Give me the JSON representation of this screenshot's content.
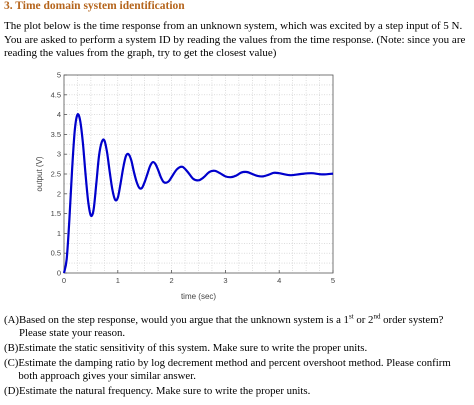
{
  "heading": "3.   Time domain system identification",
  "intro": "The plot below is the time response from an unknown system, which was excited by a step input of 5 N. You are asked to perform a system ID by reading the values from the time response. (Note: since you are reading the values from the graph, try to get the closest value)",
  "chart_data": {
    "type": "line",
    "title": "",
    "xlabel": "time (sec)",
    "ylabel": "output (V)",
    "xlim": [
      0,
      5
    ],
    "ylim": [
      0,
      5
    ],
    "x_ticks": [
      "0",
      "1",
      "2",
      "3",
      "4",
      "5"
    ],
    "y_ticks": [
      "0",
      "0.5",
      "1",
      "1.5",
      "2",
      "2.5",
      "3",
      "3.5",
      "4",
      "4.5",
      "5"
    ],
    "grid": true,
    "line_color": "#0000cc",
    "series": [
      {
        "name": "",
        "x": [
          0,
          0.05,
          0.1,
          0.15,
          0.2,
          0.25,
          0.3,
          0.35,
          0.4,
          0.45,
          0.5,
          0.55,
          0.6,
          0.65,
          0.7,
          0.75,
          0.8,
          0.85,
          0.9,
          0.95,
          1.0,
          1.05,
          1.1,
          1.15,
          1.2,
          1.25,
          1.3,
          1.35,
          1.4,
          1.45,
          1.5,
          1.55,
          1.6,
          1.65,
          1.7,
          1.75,
          1.8,
          1.85,
          1.9,
          1.95,
          2.0,
          2.1,
          2.2,
          2.3,
          2.4,
          2.5,
          2.6,
          2.7,
          2.8,
          2.9,
          3.0,
          3.1,
          3.2,
          3.3,
          3.4,
          3.5,
          3.6,
          3.7,
          3.8,
          3.9,
          4.0,
          4.2,
          4.4,
          4.6,
          4.8,
          5.0
        ],
        "y": [
          0.0,
          0.35,
          1.35,
          2.6,
          3.6,
          4.0,
          3.85,
          3.3,
          2.5,
          1.8,
          1.45,
          1.6,
          2.25,
          2.95,
          3.3,
          3.35,
          3.05,
          2.55,
          2.1,
          1.85,
          1.9,
          2.25,
          2.65,
          2.95,
          3.0,
          2.85,
          2.55,
          2.3,
          2.15,
          2.15,
          2.3,
          2.5,
          2.7,
          2.8,
          2.75,
          2.6,
          2.42,
          2.3,
          2.28,
          2.32,
          2.42,
          2.62,
          2.68,
          2.55,
          2.38,
          2.34,
          2.42,
          2.55,
          2.58,
          2.52,
          2.44,
          2.42,
          2.46,
          2.54,
          2.55,
          2.5,
          2.45,
          2.44,
          2.48,
          2.53,
          2.52,
          2.47,
          2.5,
          2.52,
          2.49,
          2.51
        ]
      }
    ]
  },
  "questions": [
    {
      "letter": "(A)",
      "pre": "Based on the step response, would you argue that the unknown system is a 1",
      "sup1": "st",
      "mid": " or 2",
      "sup2": "nd",
      "post": " order system? Please state your reason."
    },
    {
      "letter": "(B)",
      "text": "Estimate the static sensitivity of this system. Make sure to write the proper units."
    },
    {
      "letter": "(C)",
      "text": "Estimate the damping ratio by log decrement method and percent overshoot method. Please confirm both approach gives your similar answer."
    },
    {
      "letter": "(D)",
      "text": "Estimate the natural frequency. Make sure to write the proper units."
    }
  ]
}
